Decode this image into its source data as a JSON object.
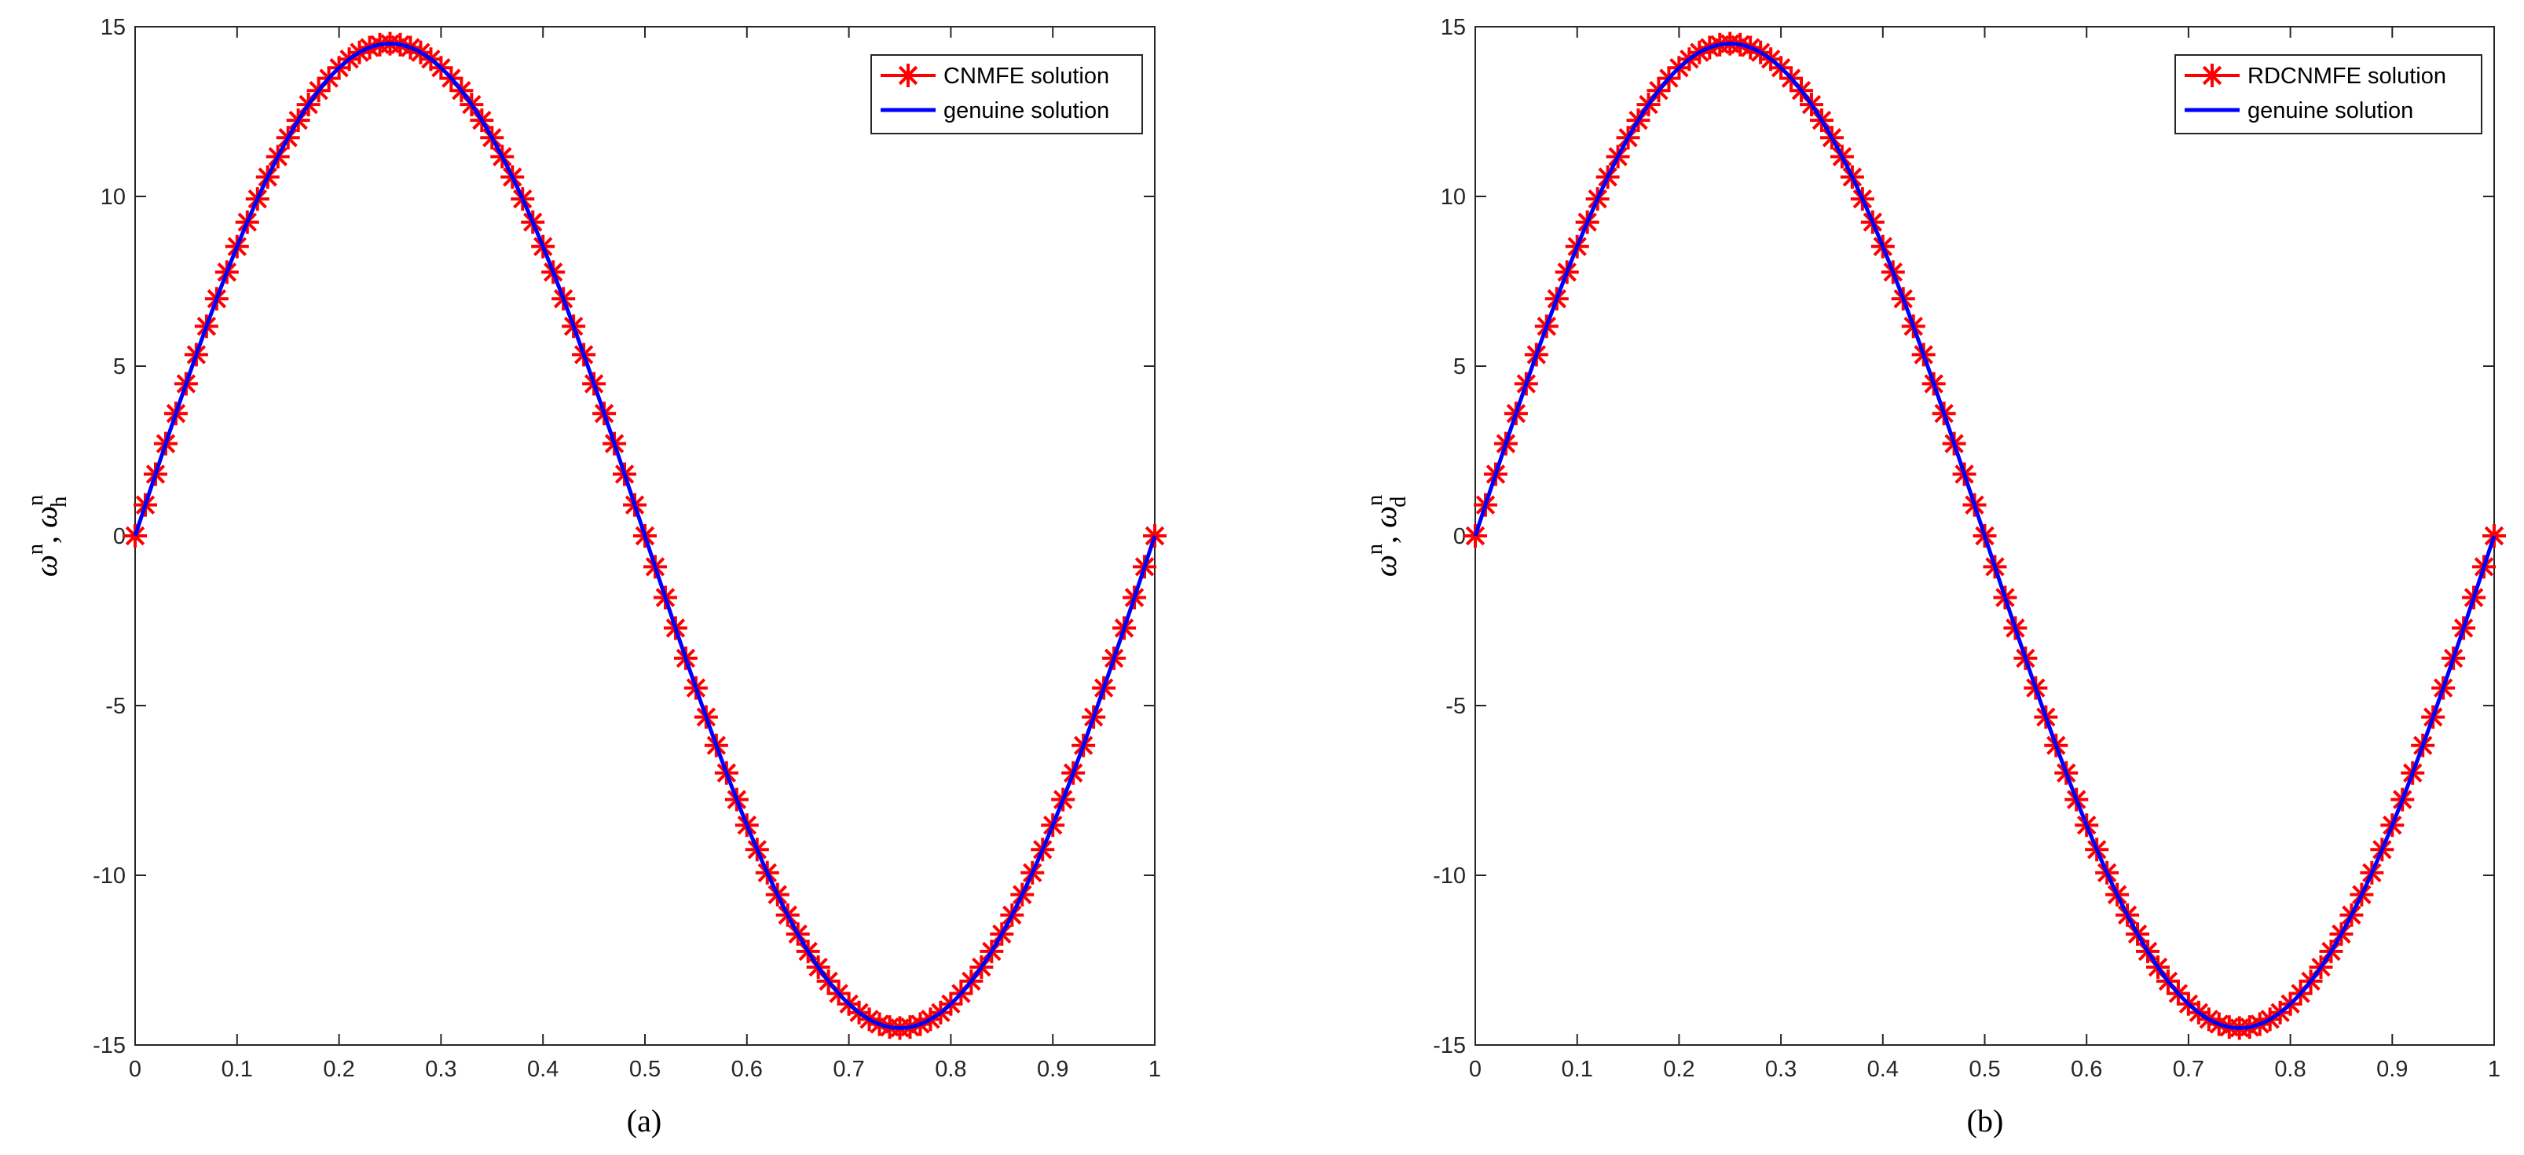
{
  "chart_data": [
    {
      "type": "line",
      "caption": "(a)",
      "ylabel": {
        "base1": "ω",
        "sup1": "n",
        "sep": ", ",
        "base2": "ω",
        "sup2": "n",
        "sub2": "h"
      },
      "xlabel": "",
      "xlim": [
        0,
        1
      ],
      "ylim": [
        -15,
        15
      ],
      "xticks": [
        "0",
        "0.1",
        "0.2",
        "0.3",
        "0.4",
        "0.5",
        "0.6",
        "0.7",
        "0.8",
        "0.9",
        "1"
      ],
      "yticks": [
        "-15",
        "-10",
        "-5",
        "0",
        "5",
        "10",
        "15"
      ],
      "grid": false,
      "legend_placement": "top-right",
      "series": [
        {
          "name": "CNMFE solution",
          "style": "red-asterisk-line",
          "color": "#ff0000",
          "function": "14.5*sin(2*pi*x)",
          "n_points": 101
        },
        {
          "name": "genuine solution",
          "style": "solid-line",
          "color": "#0000ff",
          "function": "14.5*sin(2*pi*x)"
        }
      ],
      "amplitude": 14.5
    },
    {
      "type": "line",
      "caption": "(b)",
      "ylabel": {
        "base1": "ω",
        "sup1": "n",
        "sep": ", ",
        "base2": "ω",
        "sup2": "n",
        "sub2": "d"
      },
      "xlabel": "",
      "xlim": [
        0,
        1
      ],
      "ylim": [
        -15,
        15
      ],
      "xticks": [
        "0",
        "0.1",
        "0.2",
        "0.3",
        "0.4",
        "0.5",
        "0.6",
        "0.7",
        "0.8",
        "0.9",
        "1"
      ],
      "yticks": [
        "-15",
        "-10",
        "-5",
        "0",
        "5",
        "10",
        "15"
      ],
      "grid": false,
      "legend_placement": "top-right",
      "series": [
        {
          "name": "RDCNMFE solution",
          "style": "red-asterisk-line",
          "color": "#ff0000",
          "function": "14.5*sin(2*pi*x)",
          "n_points": 101
        },
        {
          "name": "genuine solution",
          "style": "solid-line",
          "color": "#0000ff",
          "function": "14.5*sin(2*pi*x)"
        }
      ],
      "amplitude": 14.5
    }
  ]
}
